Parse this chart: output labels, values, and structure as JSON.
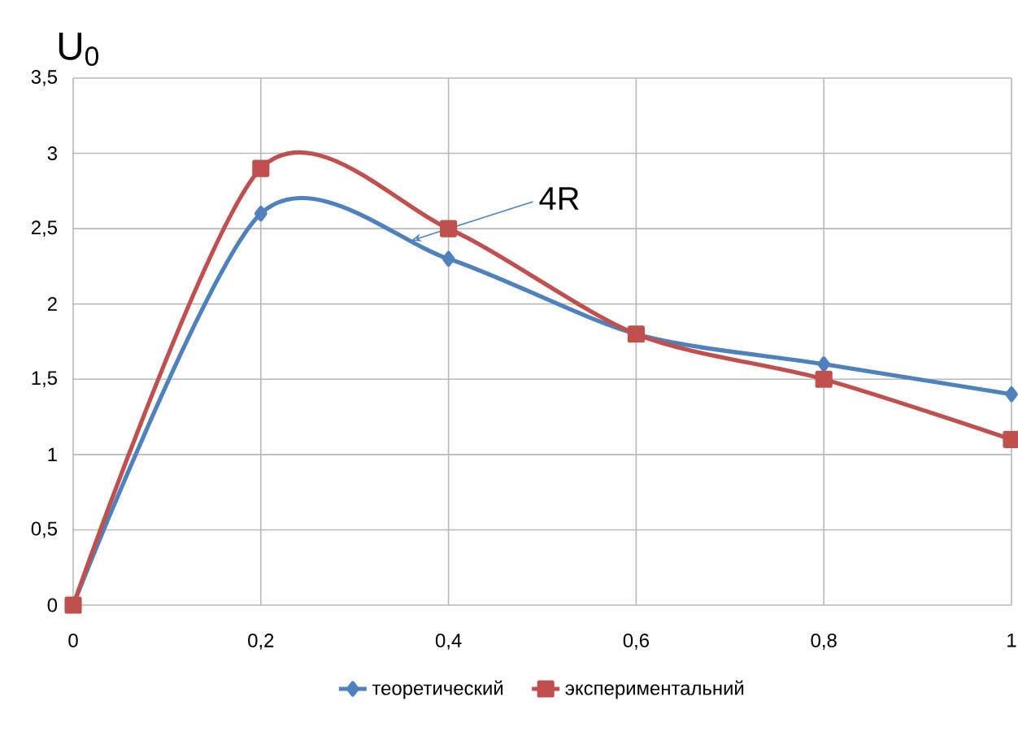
{
  "chart_data": {
    "type": "line",
    "ylabel": "U$_{0}$",
    "x": [
      0,
      0.2,
      0.4,
      0.6,
      0.8,
      1
    ],
    "series": [
      {
        "name": "теоретический",
        "color": "#4f81bd",
        "marker": "diamond",
        "values": [
          0,
          2.6,
          2.3,
          1.8,
          1.6,
          1.4
        ]
      },
      {
        "name": "экспериментальний",
        "color": "#c0504d",
        "marker": "square",
        "values": [
          0,
          2.9,
          2.5,
          1.8,
          1.5,
          1.1
        ]
      }
    ],
    "xlim": [
      0,
      1
    ],
    "xticks": [
      0,
      {
        "value": 0.2,
        "label": "0,2"
      },
      {
        "value": 0.4,
        "label": "0,4"
      },
      {
        "value": 0.6,
        "label": "0,6"
      },
      {
        "value": 0.8,
        "label": "0,8"
      },
      1
    ],
    "ylim": [
      0,
      3.5
    ],
    "yticks": [
      0,
      {
        "value": 0.5,
        "label": "0,5"
      },
      1,
      {
        "value": 1.5,
        "label": "1,5"
      },
      2,
      {
        "value": 2.5,
        "label": "2,5"
      },
      3,
      {
        "value": 3.5,
        "label": "3,5"
      }
    ],
    "annotations": [
      {
        "text": "4R",
        "x": 0.36,
        "y": 2.42
      }
    ],
    "grid": true,
    "legend": "bottom",
    "line_style": "solid"
  }
}
